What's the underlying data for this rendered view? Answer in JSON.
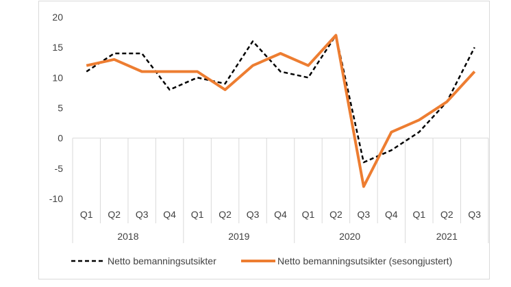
{
  "chart_data": {
    "type": "line",
    "title": "",
    "xlabel": "",
    "ylabel": "",
    "ylim": [
      -10,
      20
    ],
    "yticks": [
      20,
      15,
      10,
      5,
      0,
      -5,
      -10
    ],
    "grid": false,
    "legend_position": "bottom",
    "x_quarters": [
      "Q1",
      "Q2",
      "Q3",
      "Q4",
      "Q1",
      "Q2",
      "Q3",
      "Q4",
      "Q1",
      "Q2",
      "Q3",
      "Q4",
      "Q1",
      "Q2",
      "Q3"
    ],
    "x_years": [
      {
        "label": "2018",
        "span": 4
      },
      {
        "label": "2019",
        "span": 4
      },
      {
        "label": "2020",
        "span": 4
      },
      {
        "label": "2021",
        "span": 3
      }
    ],
    "series": [
      {
        "name": "Netto bemanningsutsikter",
        "color": "#000000",
        "style": "dashed",
        "values": [
          11,
          14,
          14,
          8,
          10,
          9,
          16,
          11,
          10,
          17,
          -4,
          -2,
          1,
          6,
          15
        ]
      },
      {
        "name": "Netto bemanningsutsikter (sesongjustert)",
        "color": "#ED7D31",
        "style": "solid",
        "values": [
          12,
          13,
          11,
          11,
          11,
          8,
          12,
          14,
          12,
          17,
          -8,
          1,
          3,
          6,
          11
        ]
      }
    ]
  }
}
